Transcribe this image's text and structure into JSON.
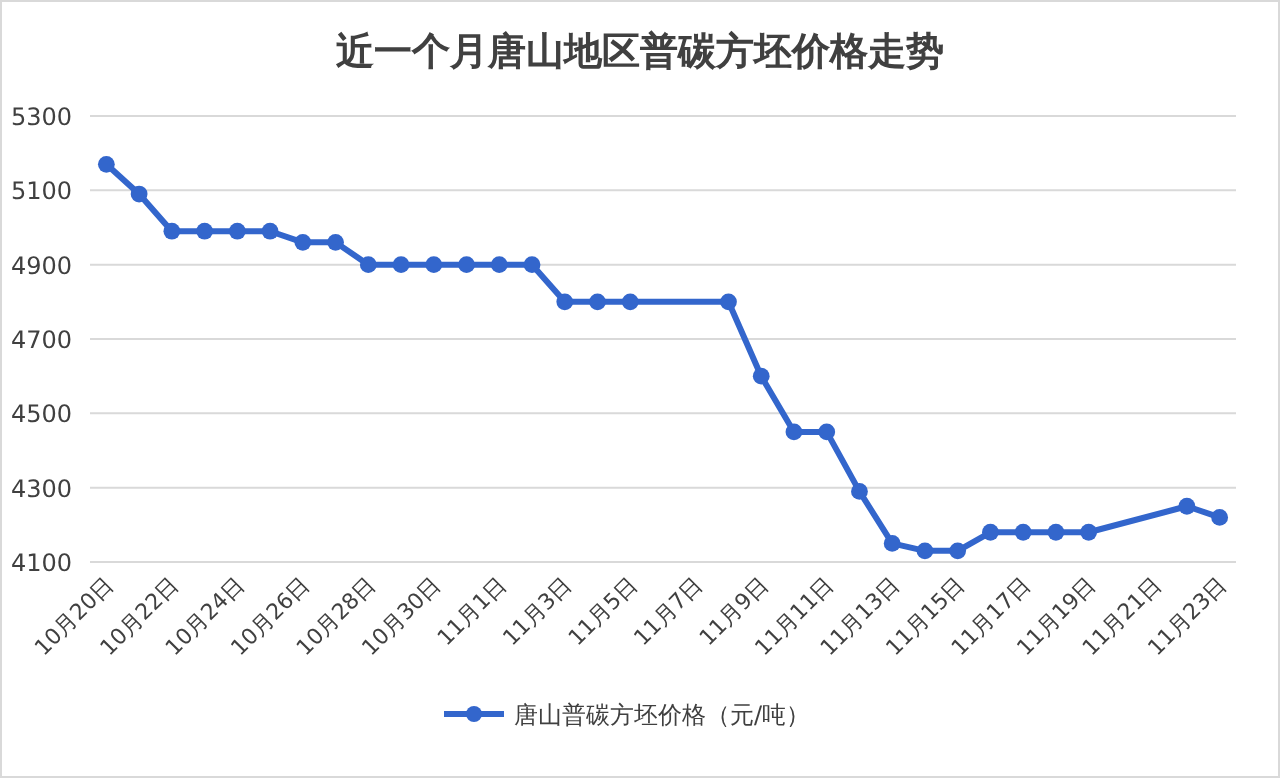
{
  "chart_data": {
    "type": "line",
    "title": "近一个月唐山地区普碳方坯价格走势",
    "categories": [
      "10月20日",
      null,
      "10月22日",
      null,
      "10月24日",
      null,
      "10月26日",
      null,
      "10月28日",
      null,
      "10月30日",
      null,
      "11月1日",
      null,
      "11月3日",
      null,
      "11月5日",
      null,
      "11月7日",
      null,
      "11月9日",
      null,
      "11月11日",
      null,
      "11月13日",
      null,
      "11月15日",
      null,
      "11月17日",
      null,
      "11月19日",
      null,
      "11月21日",
      null,
      "11月23日"
    ],
    "series": [
      {
        "name": "唐山普碳方坯价格（元/吨）",
        "color": "#3366cc",
        "values": [
          5170,
          5090,
          4990,
          4990,
          4990,
          4990,
          4960,
          4960,
          4900,
          4900,
          4900,
          4900,
          4900,
          4900,
          4800,
          4800,
          4800,
          null,
          null,
          4800,
          4600,
          4450,
          4450,
          4290,
          4150,
          4130,
          4130,
          4180,
          4180,
          4180,
          4180,
          null,
          null,
          4250,
          4220
        ]
      }
    ],
    "ylim": [
      4100,
      5300
    ],
    "yticks": [
      4100,
      4300,
      4500,
      4700,
      4900,
      5100,
      5300
    ],
    "grid": "y",
    "legend": "bottom",
    "marker": "circle",
    "line_style": "solid"
  }
}
